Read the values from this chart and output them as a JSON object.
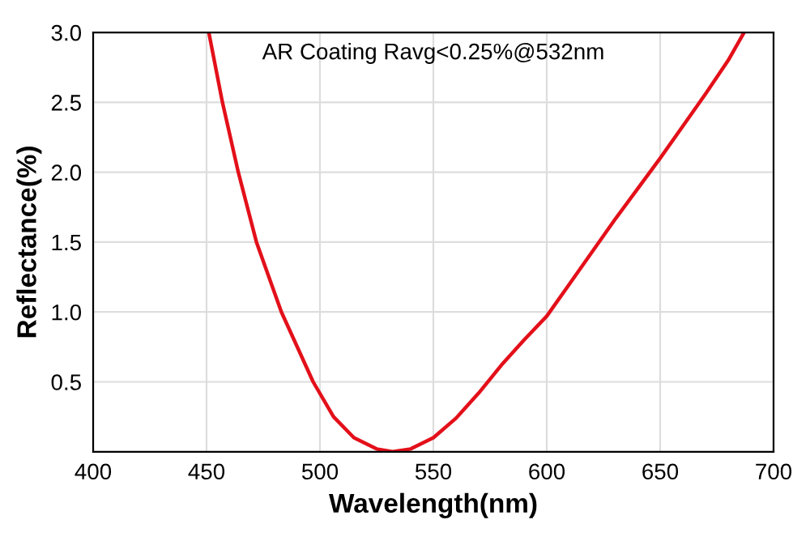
{
  "chart_data": {
    "type": "line",
    "xlabel": "Wavelength(nm)",
    "ylabel": "Reflectance(%)",
    "annotations": [
      "AR Coating Ravg<0.25%@532nm"
    ],
    "series": [
      {
        "color": "#e3101a",
        "x": [
          451,
          457,
          464,
          472,
          483,
          497,
          506,
          515,
          525,
          532,
          540,
          550,
          560,
          570,
          580,
          590,
          600,
          610,
          620,
          630,
          640,
          650,
          660,
          670,
          680,
          687
        ],
        "values": [
          3.0,
          2.5,
          2.0,
          1.5,
          1.0,
          0.5,
          0.25,
          0.1,
          0.02,
          0.0,
          0.02,
          0.1,
          0.24,
          0.42,
          0.62,
          0.8,
          0.97,
          1.2,
          1.43,
          1.66,
          1.88,
          2.1,
          2.33,
          2.56,
          2.8,
          3.0
        ]
      }
    ],
    "xlim": [
      400,
      700
    ],
    "xticks": [
      400,
      450,
      500,
      550,
      600,
      650,
      700
    ],
    "ylim": [
      0,
      3.0
    ],
    "yticks": [
      {
        "value": 0.5,
        "label": "0.5"
      },
      {
        "value": 1.0,
        "label": "1.0"
      },
      {
        "value": 1.5,
        "label": "1.5"
      },
      {
        "value": 2.0,
        "label": "2.0"
      },
      {
        "value": 2.5,
        "label": "2.5"
      },
      {
        "value": 3.0,
        "label": "3.0"
      }
    ],
    "grid": true,
    "marker": "none",
    "line_style": "solid",
    "legend": false
  }
}
